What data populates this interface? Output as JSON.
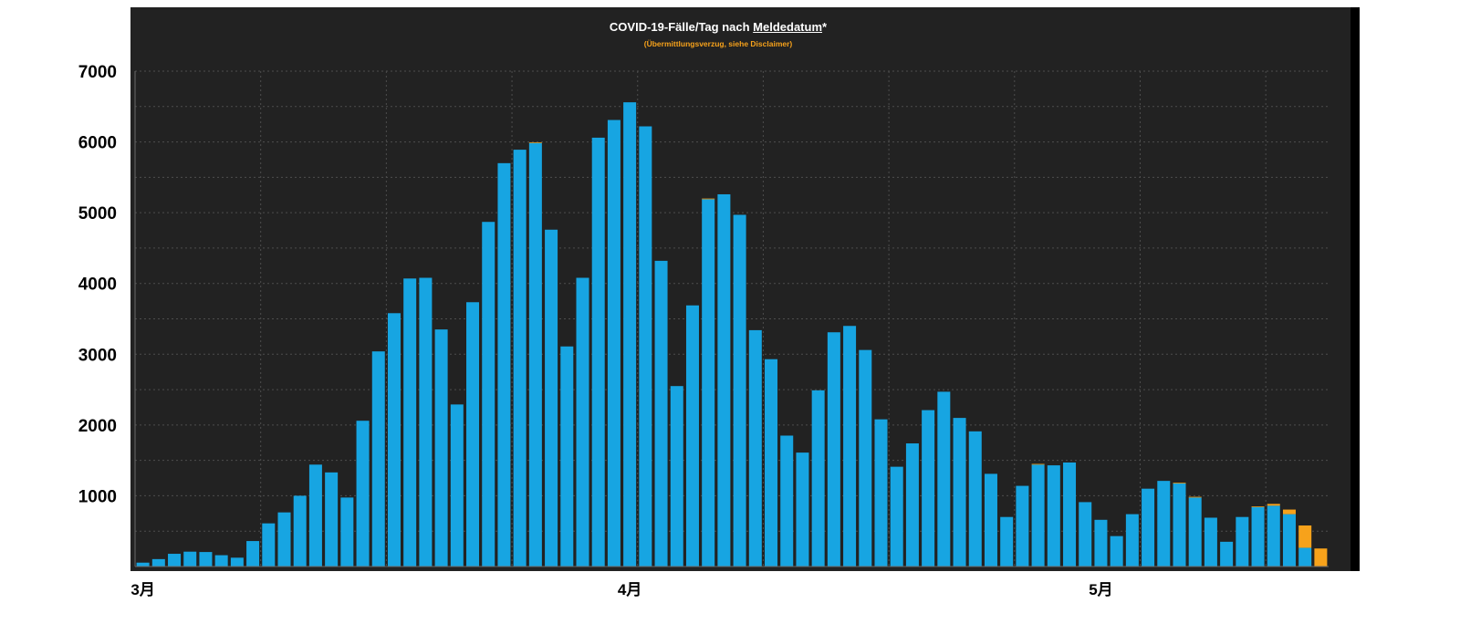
{
  "colors": {
    "panel": "#222222",
    "frame": "#000000",
    "title": "#ffffff",
    "subtitle": "#f7a21b",
    "grid": "#4d4d4d",
    "axis": "#6a6a6a",
    "tick_labels": "#000000"
  },
  "chart_data": {
    "type": "bar",
    "stacked": true,
    "title": {
      "before": "COVID-19-Fälle/Tag nach ",
      "underlined": "Meldedatum",
      "after": "*"
    },
    "subtitle": "(Übermittlungsverzug, siehe Disclaimer)",
    "ylim": [
      0,
      7000
    ],
    "y_ticks": [
      1000,
      2000,
      3000,
      4000,
      5000,
      6000,
      7000
    ],
    "grid": true,
    "x": [
      "03-01",
      "03-02",
      "03-03",
      "03-04",
      "03-05",
      "03-06",
      "03-07",
      "03-08",
      "03-09",
      "03-10",
      "03-11",
      "03-12",
      "03-13",
      "03-14",
      "03-15",
      "03-16",
      "03-17",
      "03-18",
      "03-19",
      "03-20",
      "03-21",
      "03-22",
      "03-23",
      "03-24",
      "03-25",
      "03-26",
      "03-27",
      "03-28",
      "03-29",
      "03-30",
      "03-31",
      "04-01",
      "04-02",
      "04-03",
      "04-04",
      "04-05",
      "04-06",
      "04-07",
      "04-08",
      "04-09",
      "04-10",
      "04-11",
      "04-12",
      "04-13",
      "04-14",
      "04-15",
      "04-16",
      "04-17",
      "04-18",
      "04-19",
      "04-20",
      "04-21",
      "04-22",
      "04-23",
      "04-24",
      "04-25",
      "04-26",
      "04-27",
      "04-28",
      "04-29",
      "04-30",
      "05-01",
      "05-02",
      "05-03",
      "05-04",
      "05-05",
      "05-06",
      "05-07",
      "05-08",
      "05-09",
      "05-10",
      "05-11",
      "05-12",
      "05-13",
      "05-14",
      "05-15"
    ],
    "x_ticks": [
      {
        "label": "3月",
        "x": "03-01"
      },
      {
        "label": "4月",
        "x": "04-01"
      },
      {
        "label": "5月",
        "x": "05-01"
      }
    ],
    "series": [
      {
        "color": "#17a5e2",
        "values": [
          55,
          105,
          180,
          210,
          205,
          160,
          125,
          360,
          610,
          765,
          1000,
          1440,
          1330,
          975,
          2060,
          3040,
          3580,
          4070,
          4080,
          3350,
          2290,
          3735,
          4870,
          5700,
          5890,
          5985,
          4760,
          3110,
          4080,
          6060,
          6310,
          6560,
          6220,
          4320,
          2550,
          3690,
          5190,
          5260,
          4970,
          3340,
          2930,
          1850,
          1610,
          2490,
          3310,
          3400,
          3060,
          2080,
          1410,
          1740,
          2210,
          2470,
          2100,
          1910,
          1310,
          700,
          1140,
          1440,
          1430,
          1470,
          910,
          660,
          430,
          740,
          1100,
          1210,
          1175,
          975,
          690,
          350,
          700,
          840,
          860,
          740,
          265,
          0
        ]
      },
      {
        "color": "#f7a21b",
        "values": [
          0,
          0,
          0,
          0,
          0,
          0,
          0,
          0,
          0,
          0,
          0,
          0,
          0,
          0,
          0,
          0,
          0,
          0,
          0,
          0,
          0,
          0,
          0,
          0,
          0,
          10,
          0,
          0,
          0,
          0,
          0,
          0,
          0,
          0,
          0,
          0,
          10,
          0,
          0,
          0,
          0,
          0,
          0,
          0,
          0,
          0,
          0,
          0,
          0,
          0,
          0,
          0,
          0,
          0,
          0,
          0,
          0,
          10,
          0,
          0,
          0,
          0,
          0,
          0,
          0,
          0,
          10,
          10,
          0,
          0,
          0,
          10,
          25,
          65,
          315,
          255
        ]
      }
    ]
  }
}
